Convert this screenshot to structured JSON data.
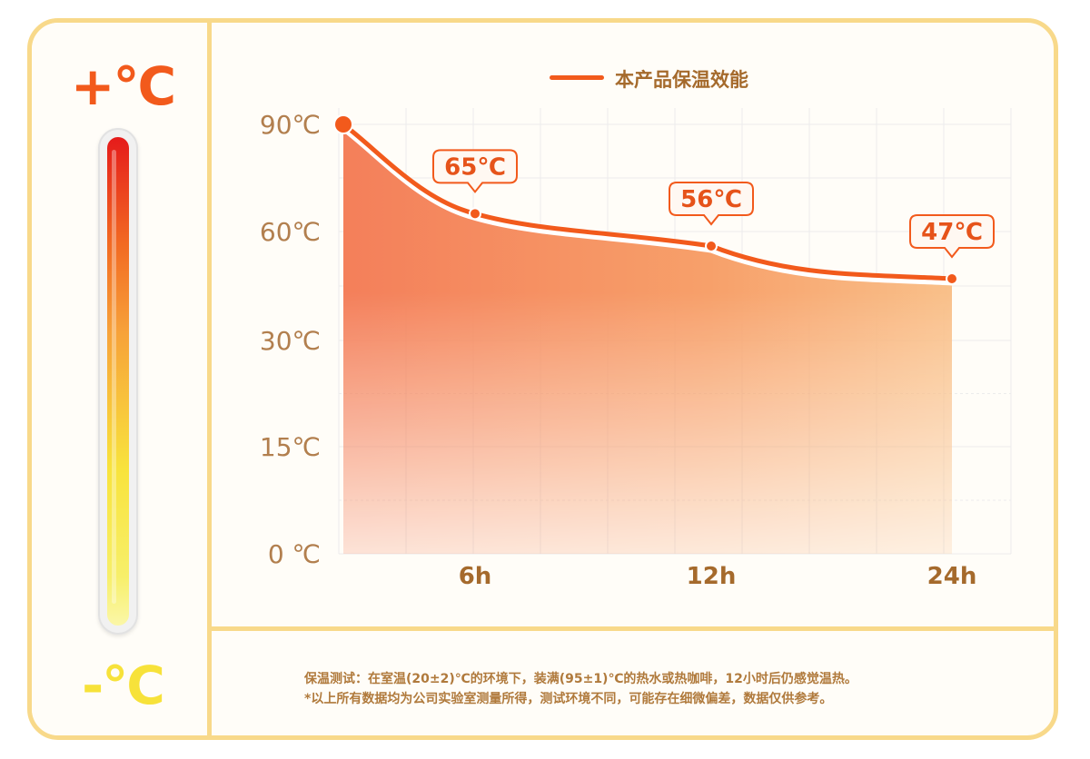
{
  "left_panel": {
    "hot_label": "+°C",
    "cold_label": "-°C"
  },
  "chart_data": {
    "type": "area",
    "title": "",
    "legend": [
      "本产品保温效能"
    ],
    "legend_position": "top-center",
    "x_ticks": [
      "6h",
      "12h",
      "24h"
    ],
    "y_ticks": [
      "0 ℃",
      "15℃",
      "30℃",
      "60℃",
      "90℃"
    ],
    "series": [
      {
        "name": "本产品保温效能",
        "points": [
          {
            "time": "0h",
            "value": 90
          },
          {
            "time": "6h",
            "value": 65
          },
          {
            "time": "12h",
            "value": 56
          },
          {
            "time": "24h",
            "value": 47
          }
        ]
      }
    ],
    "data_labels": [
      "65℃",
      "56℃",
      "47℃"
    ],
    "grid": true,
    "colors": {
      "line": "#f25a1c",
      "area_top": "#f47f5a",
      "axis_text": "#b27f4e",
      "tick_text": "#a56a2c",
      "callout_border": "#f25a1c",
      "callout_text": "#e6531a"
    }
  },
  "footer_notes": {
    "line1": "保温测试：在室温(20±2)℃的环境下，装满(95±1)℃的热水或热咖啡，12小时后仍感觉温热。",
    "line2": "*以上所有数据均为公司实验室测量所得，测试环境不同，可能存在细微偏差，数据仅供参考。"
  }
}
